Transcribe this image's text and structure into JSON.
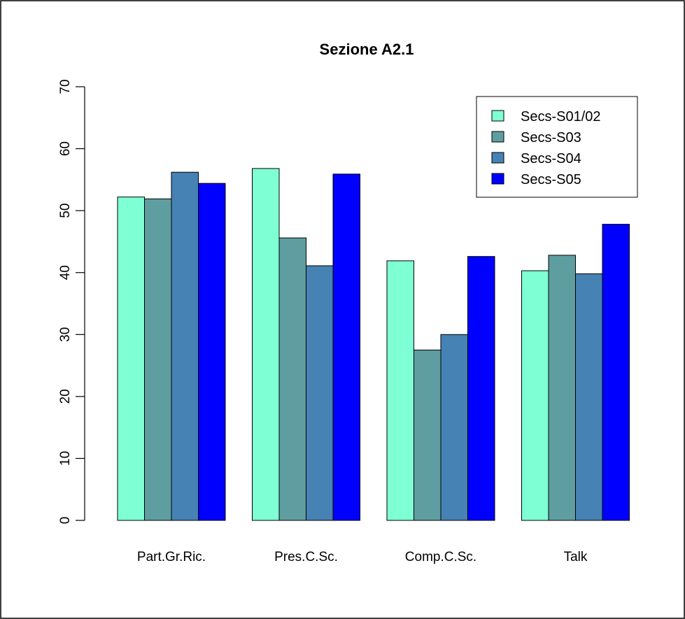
{
  "chart_data": {
    "type": "bar",
    "title": "Sezione A2.1",
    "xlabel": "",
    "ylabel": "",
    "categories": [
      "Part.Gr.Ric.",
      "Pres.C.Sc.",
      "Comp.C.Sc.",
      "Talk"
    ],
    "series": [
      {
        "name": "Secs-S01/02",
        "color": "#7FFFD4",
        "values": [
          52.2,
          56.8,
          41.9,
          40.3
        ]
      },
      {
        "name": "Secs-S03",
        "color": "#5F9EA0",
        "values": [
          51.9,
          45.6,
          27.5,
          42.8
        ]
      },
      {
        "name": "Secs-S04",
        "color": "#4682B4",
        "values": [
          56.2,
          41.1,
          30.0,
          39.8
        ]
      },
      {
        "name": "Secs-S05",
        "color": "#0000FF",
        "values": [
          54.4,
          55.9,
          42.6,
          47.8
        ]
      }
    ],
    "ylim": [
      0,
      70
    ],
    "yticks": [
      "0",
      "10",
      "20",
      "30",
      "40",
      "50",
      "60",
      "70"
    ],
    "grid": false,
    "legend_position": "top-right"
  }
}
